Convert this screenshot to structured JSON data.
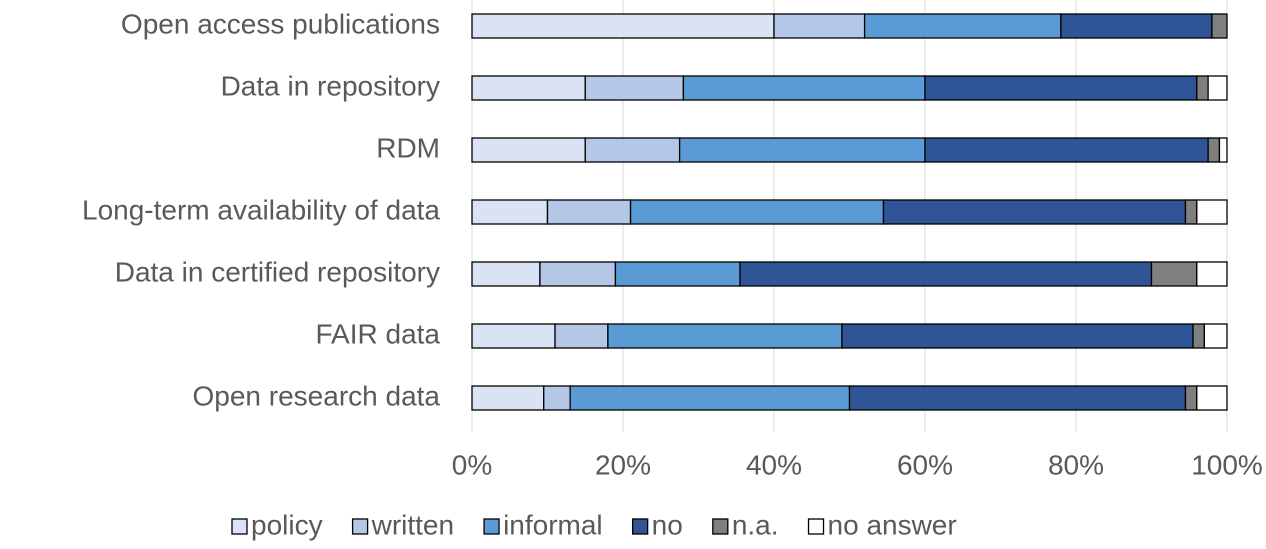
{
  "chart_data": {
    "type": "stacked_barh",
    "categories": [
      "Open access publications",
      "Data in repository",
      "RDM",
      "Long-term availability of data",
      "Data in certified repository",
      "FAIR data",
      "Open research data"
    ],
    "series": [
      {
        "name": "policy",
        "color": "#dae3f3",
        "values": [
          40,
          15,
          15,
          10,
          9,
          11,
          9.5
        ]
      },
      {
        "name": "written",
        "color": "#b4c7e7",
        "values": [
          12,
          13,
          12.5,
          11,
          10,
          7,
          3.5
        ]
      },
      {
        "name": "informal",
        "color": "#5b9bd5",
        "values": [
          26,
          32,
          32.5,
          33.5,
          16.5,
          31,
          37
        ]
      },
      {
        "name": "no",
        "color": "#2f5597",
        "values": [
          20,
          36,
          37.5,
          40,
          54.5,
          46.5,
          44.5
        ]
      },
      {
        "name": "n.a.",
        "color": "#7f7f7f",
        "values": [
          2,
          1.5,
          1.5,
          1.5,
          6,
          1.5,
          1.5
        ]
      },
      {
        "name": "no answer",
        "color": "#ffffff",
        "values": [
          0,
          2.5,
          1,
          4,
          4,
          3,
          4
        ]
      }
    ],
    "xlim": [
      0,
      100
    ],
    "xticks": [
      {
        "value": 0,
        "label": "0%"
      },
      {
        "value": 20,
        "label": "20%"
      },
      {
        "value": 40,
        "label": "40%"
      },
      {
        "value": 60,
        "label": "60%"
      },
      {
        "value": 80,
        "label": "80%"
      },
      {
        "value": 100,
        "label": "100%"
      }
    ],
    "grid": true,
    "legend": "bottom"
  }
}
